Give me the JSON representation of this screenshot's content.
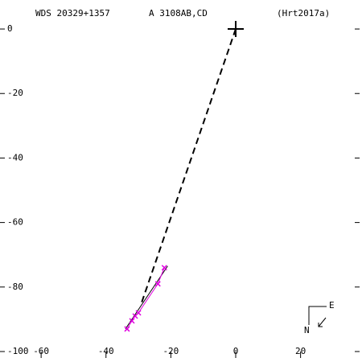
{
  "chart_data": {
    "type": "scatter",
    "header": [
      "WDS 20329+1357",
      "A  3108AB,CD",
      "(Hrt2017a)"
    ],
    "compass": [
      "E",
      "N"
    ],
    "xlim": [
      -70.7,
      38.2
    ],
    "ylim": [
      -102,
      5.5
    ],
    "xticks": [
      -60,
      -40,
      -20,
      0,
      20
    ],
    "yticks": [
      0,
      -20,
      -40,
      -60,
      -80,
      -100
    ],
    "series": [
      {
        "color": "#000000",
        "line": "dashed",
        "marker": "none",
        "x": [
          0,
          -29
        ],
        "values": [
          0,
          -84.8
        ]
      },
      {
        "color": "#000000",
        "line": "solid",
        "marker": "none",
        "x": [
          -34,
          -21
        ],
        "values": [
          -93,
          -73.5
        ]
      },
      {
        "color": "#e000e0",
        "line": "solid",
        "marker": "x",
        "x": [
          -33.5,
          -32,
          -31,
          -30,
          -24,
          -22
        ],
        "values": [
          -93,
          -90.5,
          -89,
          -88,
          -79,
          -74
        ]
      },
      {
        "color": "#000000",
        "line": "none",
        "marker": "plus",
        "x": [
          0
        ],
        "values": [
          0
        ]
      }
    ]
  }
}
